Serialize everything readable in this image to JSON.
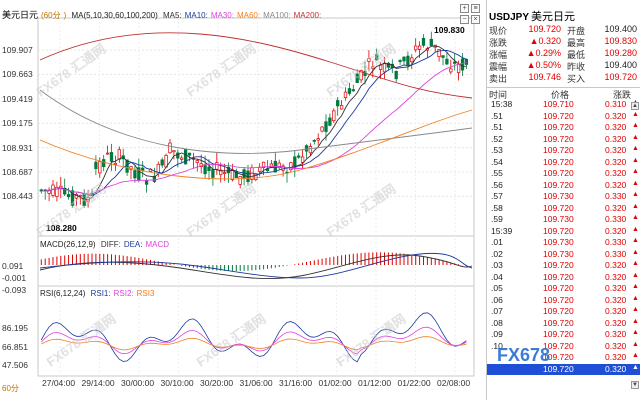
{
  "chart": {
    "title": "美元日元",
    "period": "60分",
    "ma_label": "MA(5,10,30,60,100,200)",
    "ma_items": [
      {
        "label": "MA5:",
        "color": "#333333"
      },
      {
        "label": "MA10:",
        "color": "#1c3aa0"
      },
      {
        "label": "MA30:",
        "color": "#e040e0"
      },
      {
        "label": "MA60:",
        "color": "#f08020"
      },
      {
        "label": "MA100:",
        "color": "#888888"
      },
      {
        "label": "MA200:",
        "color": "#c03030"
      }
    ],
    "price_axis": [
      "109.907",
      "109.663",
      "109.419",
      "109.175",
      "108.931",
      "108.687",
      "108.443"
    ],
    "high_marker": "109.830",
    "low_marker": "108.280",
    "macd_label": "MACD(26,12,9)",
    "macd_items": [
      {
        "label": "DIFF:",
        "color": "#333333"
      },
      {
        "label": "DEA:",
        "color": "#1c3aa0"
      },
      {
        "label": "MACD",
        "color": "#e040e0"
      }
    ],
    "macd_axis": [
      "0.091",
      "-0.001",
      "-0.093"
    ],
    "rsi_label": "RSI(6,12,24)",
    "rsi_items": [
      {
        "label": "RSI1:",
        "color": "#1c3aa0"
      },
      {
        "label": "RSI2:",
        "color": "#e040e0"
      },
      {
        "label": "RSI3",
        "color": "#f08020"
      }
    ],
    "rsi_axis": [
      "86.195",
      "66.851",
      "47.506"
    ],
    "time_axis": [
      "27/04:00",
      "29/14:00",
      "30/00:00",
      "30/10:00",
      "30/20:00",
      "31/06:00",
      "31/16:00",
      "01/02:00",
      "01/12:00",
      "01/22:00",
      "02/08:00"
    ],
    "watermark": "FX678 汇通网",
    "period_button": "60分",
    "icons": [
      "zoom-in-icon",
      "zoom-out-icon",
      "settings-icon",
      "close-icon"
    ],
    "colors": {
      "up": "#e00000",
      "down": "#007a3d"
    }
  },
  "quote": {
    "symbol": "USDJPY",
    "name": "美元日元",
    "rows": [
      {
        "l1": "现价",
        "v1": "109.720",
        "l2": "开盘",
        "v2": "109.400"
      },
      {
        "l1": "涨跌",
        "v1": "▲0.320",
        "l2": "最高",
        "v2": "109.830"
      },
      {
        "l1": "涨幅",
        "v1": "▲0.29%",
        "l2": "最低",
        "v2": "109.280"
      },
      {
        "l1": "震幅",
        "v1": "▲0.50%",
        "l2": "昨收",
        "v2": "109.400"
      },
      {
        "l1": "卖出",
        "v1": "109.746",
        "l2": "买入",
        "v2": "109.720"
      }
    ],
    "tick_header": {
      "time": "时间",
      "price": "价格",
      "change": "涨跌"
    },
    "ticks": [
      {
        "t": "15:38",
        "p": "109.710",
        "c": "0.310"
      },
      {
        "t": ".51",
        "p": "109.720",
        "c": "0.320"
      },
      {
        "t": ".51",
        "p": "109.720",
        "c": "0.320"
      },
      {
        "t": ".52",
        "p": "109.720",
        "c": "0.320"
      },
      {
        "t": ".53",
        "p": "109.720",
        "c": "0.320"
      },
      {
        "t": ".54",
        "p": "109.720",
        "c": "0.320"
      },
      {
        "t": ".55",
        "p": "109.720",
        "c": "0.320"
      },
      {
        "t": ".56",
        "p": "109.720",
        "c": "0.320"
      },
      {
        "t": ".57",
        "p": "109.730",
        "c": "0.330"
      },
      {
        "t": ".58",
        "p": "109.720",
        "c": "0.320"
      },
      {
        "t": ".59",
        "p": "109.730",
        "c": "0.330"
      },
      {
        "t": "15:39",
        "p": "109.720",
        "c": "0.320"
      },
      {
        "t": ".01",
        "p": "109.730",
        "c": "0.330"
      },
      {
        "t": ".02",
        "p": "109.730",
        "c": "0.330"
      },
      {
        "t": ".03",
        "p": "109.720",
        "c": "0.320"
      },
      {
        "t": ".04",
        "p": "109.720",
        "c": "0.320"
      },
      {
        "t": ".05",
        "p": "109.720",
        "c": "0.320"
      },
      {
        "t": ".06",
        "p": "109.720",
        "c": "0.320"
      },
      {
        "t": ".07",
        "p": "109.720",
        "c": "0.320"
      },
      {
        "t": ".08",
        "p": "109.720",
        "c": "0.320"
      },
      {
        "t": ".09",
        "p": "109.720",
        "c": "0.320"
      },
      {
        "t": ".10",
        "p": "109.720",
        "c": "0.320"
      },
      {
        "t": "",
        "p": "109.720",
        "c": "0.320"
      },
      {
        "t": "",
        "p": "109.720",
        "c": "0.320"
      }
    ],
    "selected_index": 23
  }
}
